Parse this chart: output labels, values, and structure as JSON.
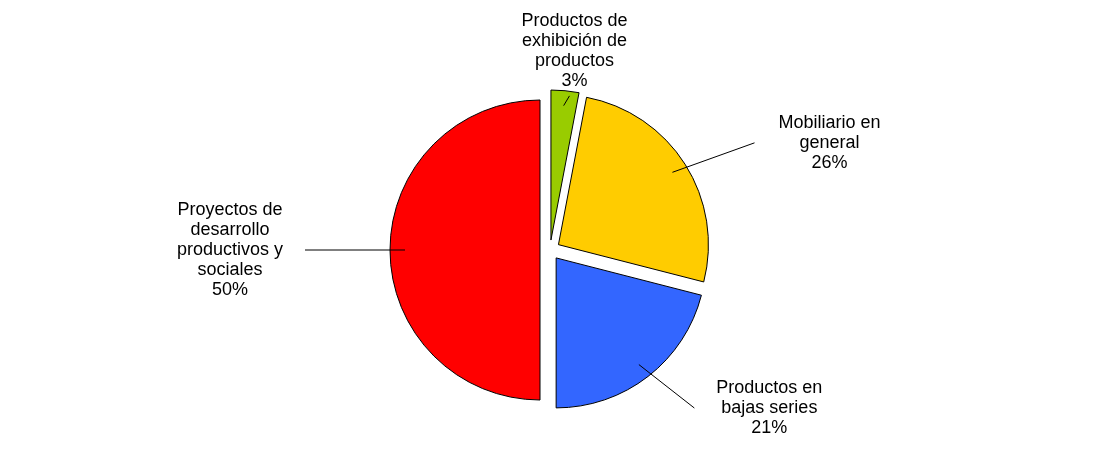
{
  "chart_data": {
    "type": "pie",
    "categories": [
      "Productos de exhibición de productos",
      "Mobiliario en general",
      "Productos en bajas series",
      "Proyectos de desarrollo productivos y sociales"
    ],
    "values": [
      3,
      26,
      21,
      50
    ],
    "colors": [
      "#99cc00",
      "#ffcc00",
      "#3366ff",
      "#ff0000"
    ],
    "value_labels": [
      "3%",
      "26%",
      "21%",
      "50%"
    ],
    "legend": false
  }
}
